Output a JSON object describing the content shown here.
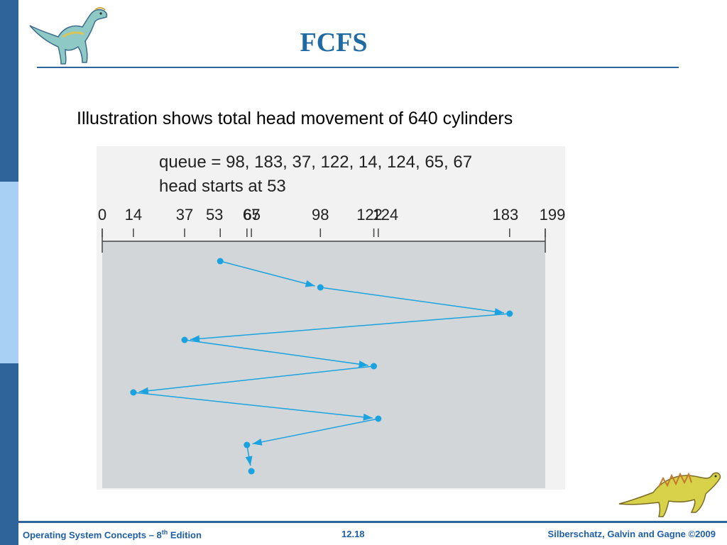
{
  "slide": {
    "title": "FCFS",
    "subtitle": "Illustration shows total head movement of 640 cylinders"
  },
  "diagram": {
    "queue_text": "queue = 98, 183, 37, 122, 14, 124, 65, 67",
    "head_text": "head starts at 53",
    "axis_min": 0,
    "axis_max": 199,
    "ticks": [
      0,
      14,
      37,
      53,
      65,
      67,
      98,
      122,
      124,
      183,
      199
    ],
    "sequence": [
      53,
      98,
      183,
      37,
      122,
      14,
      124,
      65,
      67
    ],
    "arrow_color": "#1aa3e0",
    "panel_color": "#d3d6d8"
  },
  "footer": {
    "left_prefix": "Operating System Concepts – 8",
    "left_sup": "th",
    "left_suffix": " Edition",
    "center": "12.18",
    "right": "Silberschatz, Galvin and Gagne ©2009"
  },
  "icons": [
    "dinosaur-icon",
    "dinosaur-icon"
  ]
}
